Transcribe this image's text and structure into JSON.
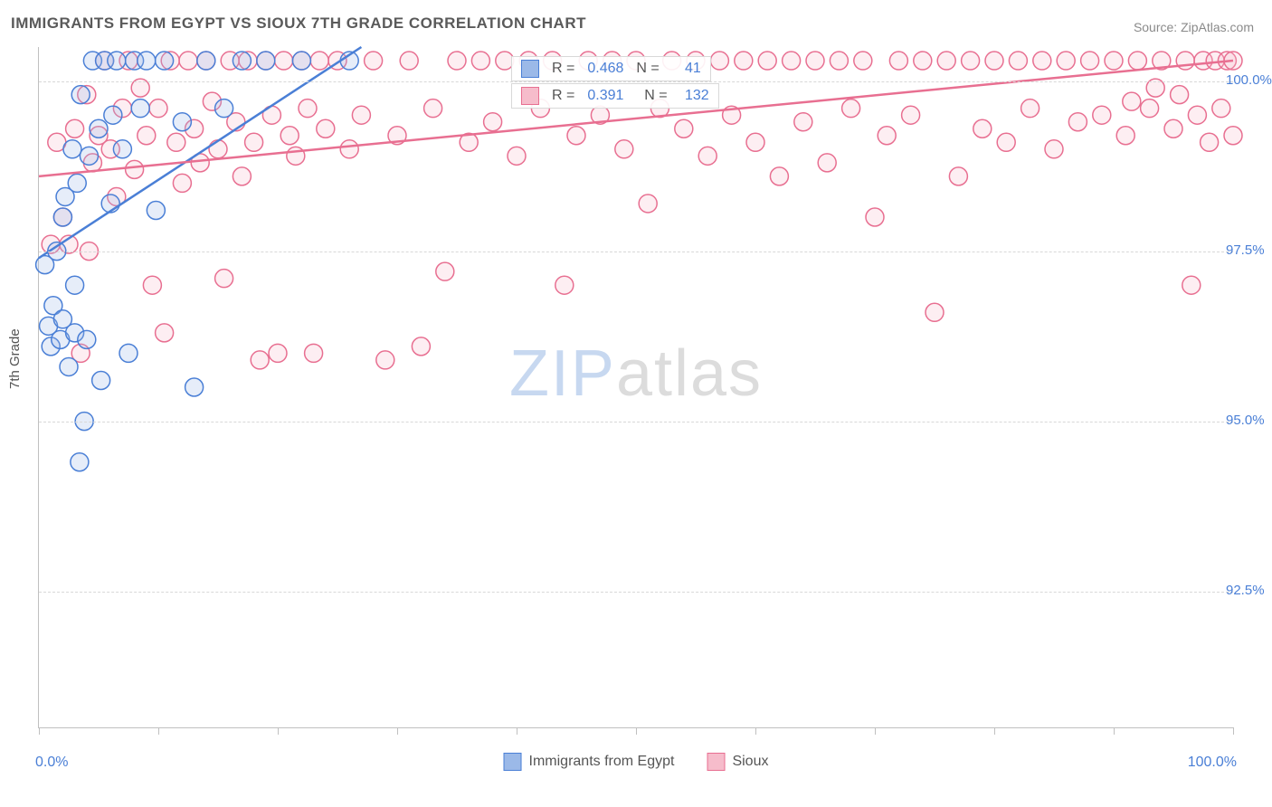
{
  "title": "IMMIGRANTS FROM EGYPT VS SIOUX 7TH GRADE CORRELATION CHART",
  "source": "Source: ZipAtlas.com",
  "ylabel": "7th Grade",
  "watermark_zip": "ZIP",
  "watermark_atlas": "atlas",
  "chart": {
    "type": "scatter",
    "background_color": "#ffffff",
    "grid_color": "#d8d8d8",
    "axis_color": "#c0c0c0",
    "text_color": "#555555",
    "value_color": "#4a7fd6",
    "title_color": "#5a5a5a",
    "title_fontsize": 17,
    "label_fontsize": 15,
    "tick_fontsize": 15,
    "xlim": [
      0,
      100
    ],
    "ylim": [
      90.5,
      100.5
    ],
    "xticks": [
      0,
      10,
      20,
      30,
      40,
      50,
      60,
      70,
      80,
      90,
      100
    ],
    "yticks": [
      92.5,
      95.0,
      97.5,
      100.0
    ],
    "ytick_labels": [
      "92.5%",
      "95.0%",
      "97.5%",
      "100.0%"
    ],
    "x_end_labels": [
      "0.0%",
      "100.0%"
    ],
    "marker_radius": 10,
    "marker_stroke_width": 1.5,
    "marker_fill_opacity": 0.25,
    "trend_line_width": 2.5,
    "series": [
      {
        "id": "egypt",
        "label": "Immigrants from Egypt",
        "color_stroke": "#4a7fd6",
        "color_fill": "#9bb9e8",
        "R": "0.468",
        "N": "41",
        "trend": {
          "x1": 0,
          "y1": 97.4,
          "x2": 27,
          "y2": 100.5
        },
        "points": [
          [
            0.5,
            97.3
          ],
          [
            0.8,
            96.4
          ],
          [
            1.0,
            96.1
          ],
          [
            1.2,
            96.7
          ],
          [
            1.5,
            97.5
          ],
          [
            1.8,
            96.2
          ],
          [
            2.0,
            98.0
          ],
          [
            2.0,
            96.5
          ],
          [
            2.2,
            98.3
          ],
          [
            2.5,
            95.8
          ],
          [
            2.8,
            99.0
          ],
          [
            3.0,
            97.0
          ],
          [
            3.0,
            96.3
          ],
          [
            3.2,
            98.5
          ],
          [
            3.4,
            94.4
          ],
          [
            3.5,
            99.8
          ],
          [
            3.8,
            95.0
          ],
          [
            4.0,
            96.2
          ],
          [
            4.2,
            98.9
          ],
          [
            4.5,
            100.3
          ],
          [
            5.0,
            99.3
          ],
          [
            5.2,
            95.6
          ],
          [
            5.5,
            100.3
          ],
          [
            6.0,
            98.2
          ],
          [
            6.2,
            99.5
          ],
          [
            6.5,
            100.3
          ],
          [
            7.0,
            99.0
          ],
          [
            7.5,
            96.0
          ],
          [
            8.0,
            100.3
          ],
          [
            8.5,
            99.6
          ],
          [
            9.0,
            100.3
          ],
          [
            9.8,
            98.1
          ],
          [
            10.5,
            100.3
          ],
          [
            12.0,
            99.4
          ],
          [
            13.0,
            95.5
          ],
          [
            14.0,
            100.3
          ],
          [
            15.5,
            99.6
          ],
          [
            17.0,
            100.3
          ],
          [
            19.0,
            100.3
          ],
          [
            22.0,
            100.3
          ],
          [
            26.0,
            100.3
          ]
        ]
      },
      {
        "id": "sioux",
        "label": "Sioux",
        "color_stroke": "#e86f91",
        "color_fill": "#f6bccb",
        "R": "0.391",
        "N": "132",
        "trend": {
          "x1": 0,
          "y1": 98.6,
          "x2": 100,
          "y2": 100.3
        },
        "points": [
          [
            1.0,
            97.6
          ],
          [
            1.5,
            99.1
          ],
          [
            2.0,
            98.0
          ],
          [
            2.5,
            97.6
          ],
          [
            3.0,
            99.3
          ],
          [
            3.5,
            96.0
          ],
          [
            4.0,
            99.8
          ],
          [
            4.2,
            97.5
          ],
          [
            4.5,
            98.8
          ],
          [
            5.0,
            99.2
          ],
          [
            5.5,
            100.3
          ],
          [
            6.0,
            99.0
          ],
          [
            6.5,
            98.3
          ],
          [
            7.0,
            99.6
          ],
          [
            7.5,
            100.3
          ],
          [
            8.0,
            98.7
          ],
          [
            8.5,
            99.9
          ],
          [
            9.0,
            99.2
          ],
          [
            9.5,
            97.0
          ],
          [
            10.0,
            99.6
          ],
          [
            10.5,
            96.3
          ],
          [
            11.0,
            100.3
          ],
          [
            11.5,
            99.1
          ],
          [
            12.0,
            98.5
          ],
          [
            12.5,
            100.3
          ],
          [
            13.0,
            99.3
          ],
          [
            13.5,
            98.8
          ],
          [
            14.0,
            100.3
          ],
          [
            14.5,
            99.7
          ],
          [
            15.0,
            99.0
          ],
          [
            15.5,
            97.1
          ],
          [
            16.0,
            100.3
          ],
          [
            16.5,
            99.4
          ],
          [
            17.0,
            98.6
          ],
          [
            17.5,
            100.3
          ],
          [
            18.0,
            99.1
          ],
          [
            18.5,
            95.9
          ],
          [
            19.0,
            100.3
          ],
          [
            19.5,
            99.5
          ],
          [
            20.0,
            96.0
          ],
          [
            20.5,
            100.3
          ],
          [
            21.0,
            99.2
          ],
          [
            21.5,
            98.9
          ],
          [
            22.0,
            100.3
          ],
          [
            22.5,
            99.6
          ],
          [
            23.0,
            96.0
          ],
          [
            23.5,
            100.3
          ],
          [
            24.0,
            99.3
          ],
          [
            25.0,
            100.3
          ],
          [
            26.0,
            99.0
          ],
          [
            27.0,
            99.5
          ],
          [
            28.0,
            100.3
          ],
          [
            29.0,
            95.9
          ],
          [
            30.0,
            99.2
          ],
          [
            31.0,
            100.3
          ],
          [
            32.0,
            96.1
          ],
          [
            33.0,
            99.6
          ],
          [
            34.0,
            97.2
          ],
          [
            35.0,
            100.3
          ],
          [
            36.0,
            99.1
          ],
          [
            37.0,
            100.3
          ],
          [
            38.0,
            99.4
          ],
          [
            39.0,
            100.3
          ],
          [
            40.0,
            98.9
          ],
          [
            41.0,
            100.3
          ],
          [
            42.0,
            99.6
          ],
          [
            43.0,
            100.3
          ],
          [
            44.0,
            97.0
          ],
          [
            45.0,
            99.2
          ],
          [
            46.0,
            100.3
          ],
          [
            47.0,
            99.5
          ],
          [
            48.0,
            100.3
          ],
          [
            49.0,
            99.0
          ],
          [
            50.0,
            100.3
          ],
          [
            51.0,
            98.2
          ],
          [
            52.0,
            99.6
          ],
          [
            53.0,
            100.3
          ],
          [
            54.0,
            99.3
          ],
          [
            55.0,
            100.3
          ],
          [
            56.0,
            98.9
          ],
          [
            57.0,
            100.3
          ],
          [
            58.0,
            99.5
          ],
          [
            59.0,
            100.3
          ],
          [
            60.0,
            99.1
          ],
          [
            61.0,
            100.3
          ],
          [
            62.0,
            98.6
          ],
          [
            63.0,
            100.3
          ],
          [
            64.0,
            99.4
          ],
          [
            65.0,
            100.3
          ],
          [
            66.0,
            98.8
          ],
          [
            67.0,
            100.3
          ],
          [
            68.0,
            99.6
          ],
          [
            69.0,
            100.3
          ],
          [
            70.0,
            98.0
          ],
          [
            71.0,
            99.2
          ],
          [
            72.0,
            100.3
          ],
          [
            73.0,
            99.5
          ],
          [
            74.0,
            100.3
          ],
          [
            75.0,
            96.6
          ],
          [
            76.0,
            100.3
          ],
          [
            77.0,
            98.6
          ],
          [
            78.0,
            100.3
          ],
          [
            79.0,
            99.3
          ],
          [
            80.0,
            100.3
          ],
          [
            81.0,
            99.1
          ],
          [
            82.0,
            100.3
          ],
          [
            83.0,
            99.6
          ],
          [
            84.0,
            100.3
          ],
          [
            85.0,
            99.0
          ],
          [
            86.0,
            100.3
          ],
          [
            87.0,
            99.4
          ],
          [
            88.0,
            100.3
          ],
          [
            89.0,
            99.5
          ],
          [
            90.0,
            100.3
          ],
          [
            91.0,
            99.2
          ],
          [
            92.0,
            100.3
          ],
          [
            93.0,
            99.6
          ],
          [
            94.0,
            100.3
          ],
          [
            95.0,
            99.3
          ],
          [
            96.0,
            100.3
          ],
          [
            96.5,
            97.0
          ],
          [
            97.0,
            99.5
          ],
          [
            97.5,
            100.3
          ],
          [
            98.0,
            99.1
          ],
          [
            98.5,
            100.3
          ],
          [
            99.0,
            99.6
          ],
          [
            99.5,
            100.3
          ],
          [
            100.0,
            99.2
          ],
          [
            100.0,
            100.3
          ],
          [
            95.5,
            99.8
          ],
          [
            93.5,
            99.9
          ],
          [
            91.5,
            99.7
          ]
        ]
      }
    ]
  }
}
